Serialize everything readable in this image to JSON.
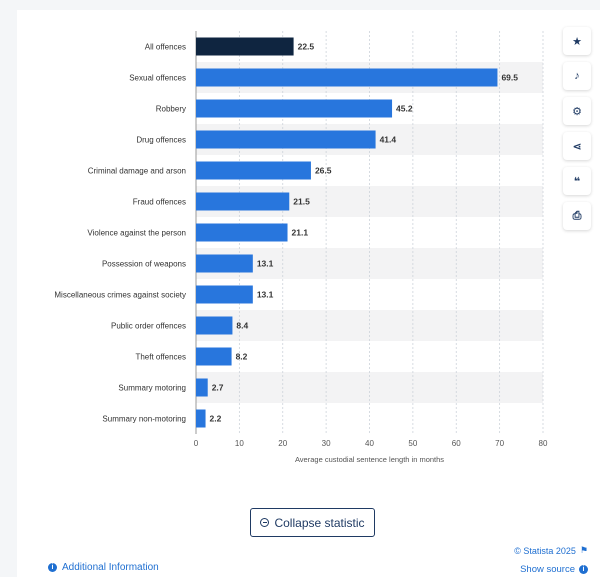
{
  "chart_data": {
    "type": "bar",
    "orientation": "horizontal",
    "categories": [
      "All offences",
      "Sexual offences",
      "Robbery",
      "Drug offences",
      "Criminal damage and arson",
      "Fraud offences",
      "Violence against the person",
      "Possession of weapons",
      "Miscellaneous crimes against society",
      "Public order offences",
      "Theft offences",
      "Summary motoring",
      "Summary non-motoring"
    ],
    "values": [
      22.5,
      69.5,
      45.2,
      41.4,
      26.5,
      21.5,
      21.1,
      13.1,
      13.1,
      8.4,
      8.2,
      2.7,
      2.2
    ],
    "value_labels": [
      "22.5",
      "69.5",
      "45.2",
      "41.4",
      "26.5",
      "21.5",
      "21.1",
      "13.1",
      "13.1",
      "8.4",
      "8.2",
      "2.7",
      "2.2"
    ],
    "highlight_index": 0,
    "xlim": [
      0,
      80
    ],
    "ticks": [
      "0",
      "10",
      "20",
      "30",
      "40",
      "50",
      "60",
      "70",
      "80"
    ],
    "xlabel": "Average custodial sentence length in months",
    "colors": {
      "bar": "#2876dd",
      "highlight": "#0f2540",
      "stripe": "#f3f3f4",
      "gridline": "#cdd3da"
    }
  },
  "toolbar": {
    "icons": [
      "star-icon",
      "bell-icon",
      "gear-icon",
      "share-icon",
      "quote-icon",
      "print-icon"
    ],
    "glyphs": [
      "★",
      "🔔",
      "⚙",
      "⋖",
      "❝",
      "⎙"
    ]
  },
  "footer": {
    "collapse_label": "Collapse statistic",
    "additional_info": "Additional Information",
    "copyright": "© Statista 2025",
    "show_source": "Show source"
  }
}
